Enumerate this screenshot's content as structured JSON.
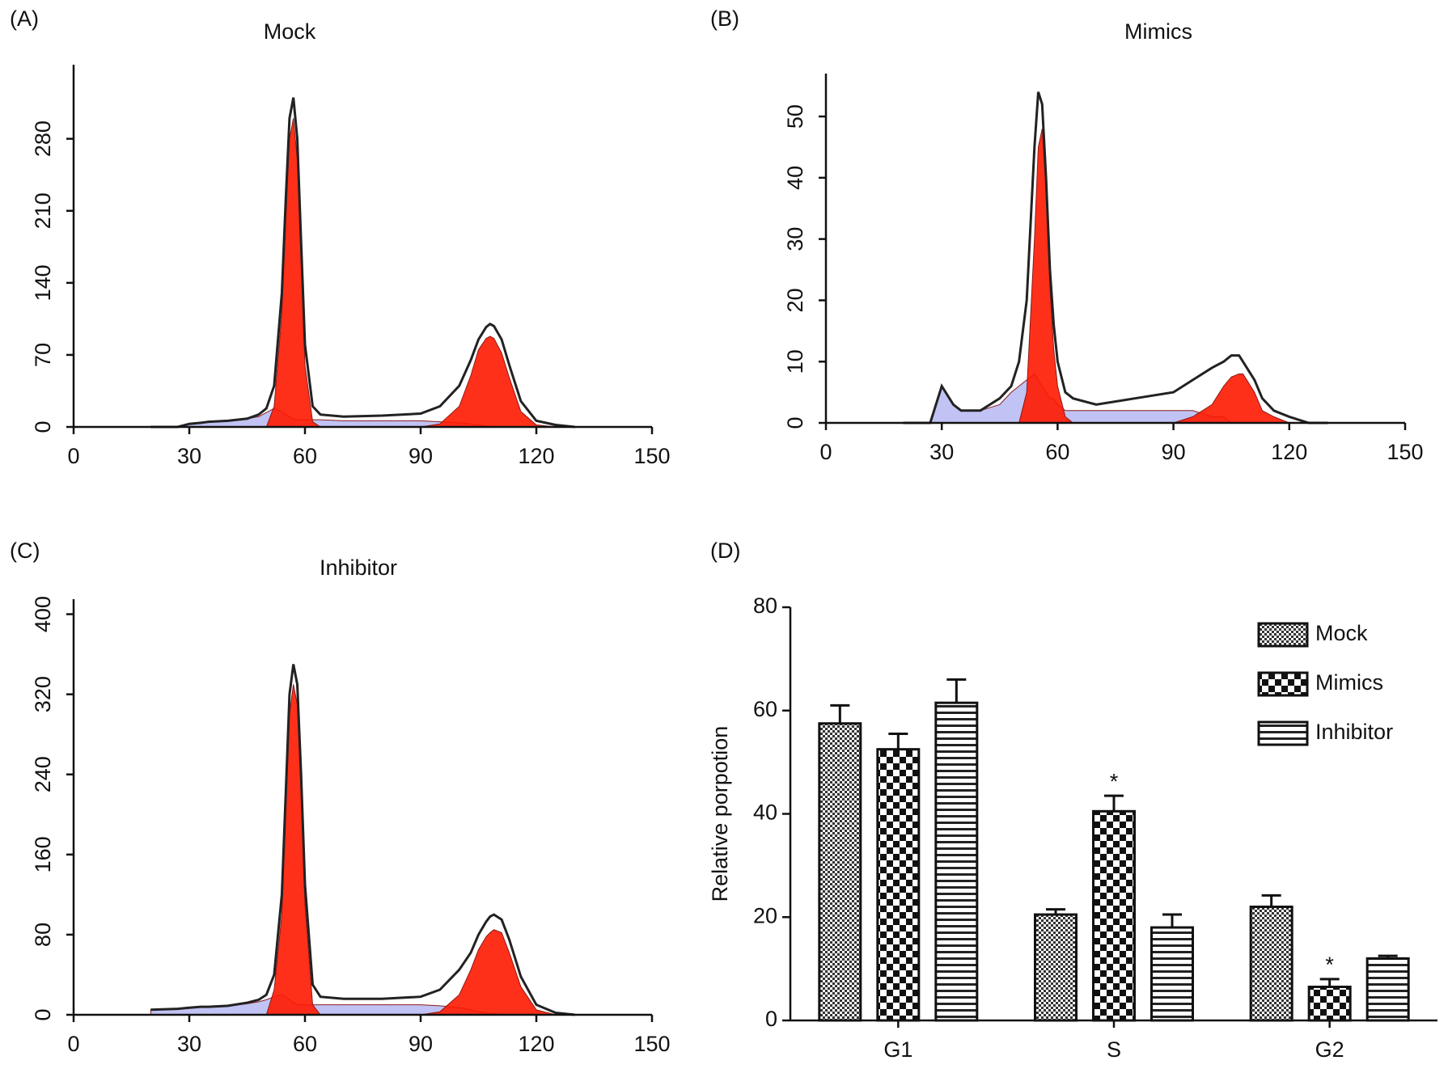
{
  "chart_data": [
    {
      "type": "area",
      "panel": "(A)",
      "title": "Mock",
      "x": [
        20,
        27,
        30,
        33,
        35,
        40,
        45,
        48,
        50,
        52,
        54,
        55,
        56,
        57,
        58,
        59,
        60,
        62,
        64,
        70,
        80,
        90,
        95,
        100,
        103,
        105,
        107,
        108,
        109,
        111,
        113,
        116,
        120,
        125,
        130
      ],
      "series": [
        {
          "color": "#b9bdf2",
          "style": "fill",
          "values": [
            0,
            0,
            3,
            4,
            5,
            6,
            8,
            10,
            14,
            18,
            15,
            12,
            10,
            8,
            7,
            7,
            7,
            7,
            7,
            6,
            6,
            6,
            5,
            4,
            3,
            2,
            1,
            0,
            0,
            0,
            0,
            0,
            0,
            0,
            0
          ]
        },
        {
          "color": "#ff1a00",
          "style": "fill",
          "values": [
            0,
            0,
            0,
            0,
            0,
            0,
            0,
            0,
            0,
            20,
            110,
            200,
            280,
            300,
            260,
            160,
            60,
            5,
            0,
            0,
            0,
            0,
            0,
            0,
            0,
            0,
            0,
            0,
            0,
            0,
            0,
            0,
            0,
            0,
            0
          ]
        },
        {
          "color": "#ff1a00",
          "style": "fill",
          "values": [
            0,
            0,
            0,
            0,
            0,
            0,
            0,
            0,
            0,
            0,
            0,
            0,
            0,
            0,
            0,
            0,
            0,
            0,
            0,
            0,
            0,
            0,
            3,
            20,
            50,
            75,
            86,
            88,
            86,
            72,
            48,
            15,
            2,
            0,
            0
          ]
        },
        {
          "color": "#222222",
          "style": "line",
          "values": [
            0,
            0,
            3,
            4,
            5,
            6,
            8,
            12,
            18,
            40,
            130,
            220,
            300,
            320,
            280,
            180,
            80,
            20,
            12,
            10,
            11,
            13,
            20,
            40,
            65,
            85,
            97,
            100,
            98,
            85,
            60,
            25,
            6,
            2,
            0
          ]
        }
      ],
      "xlim": [
        0,
        150
      ],
      "xticks": [
        0,
        30,
        60,
        90,
        120,
        150
      ],
      "ylim": [
        0,
        352
      ],
      "yticks": [
        0,
        70,
        140,
        210,
        280
      ]
    },
    {
      "type": "area",
      "panel": "(B)",
      "title": "Mimics",
      "x": [
        20,
        27,
        30,
        33,
        35,
        40,
        45,
        48,
        50,
        52,
        54,
        55,
        56,
        57,
        58,
        59,
        60,
        62,
        64,
        70,
        80,
        90,
        95,
        100,
        103,
        105,
        107,
        108,
        109,
        111,
        113,
        116,
        120,
        125,
        130
      ],
      "series": [
        {
          "color": "#b9bdf2",
          "style": "fill",
          "values": [
            0,
            0,
            6,
            3,
            2,
            2,
            3,
            5,
            6,
            7,
            8,
            7,
            6,
            5,
            4,
            4,
            3,
            2,
            2,
            2,
            2,
            2,
            2,
            1,
            1,
            0,
            0,
            0,
            0,
            0,
            0,
            0,
            0,
            0,
            0
          ]
        },
        {
          "color": "#ff1a00",
          "style": "fill",
          "values": [
            0,
            0,
            0,
            0,
            0,
            0,
            0,
            0,
            0,
            5,
            30,
            45,
            48,
            38,
            22,
            12,
            6,
            1,
            0,
            0,
            0,
            0,
            0,
            0,
            0,
            0,
            0,
            0,
            0,
            0,
            0,
            0,
            0,
            0,
            0
          ]
        },
        {
          "color": "#ff1a00",
          "style": "fill",
          "values": [
            0,
            0,
            0,
            0,
            0,
            0,
            0,
            0,
            0,
            0,
            0,
            0,
            0,
            0,
            0,
            0,
            0,
            0,
            0,
            0,
            0,
            0,
            1,
            3,
            6,
            7.5,
            8,
            8,
            7,
            5,
            2,
            1,
            0,
            0,
            0
          ]
        },
        {
          "color": "#222222",
          "style": "line",
          "values": [
            0,
            0,
            6,
            3,
            2,
            2,
            4,
            6,
            10,
            20,
            45,
            54,
            52,
            40,
            25,
            16,
            10,
            5,
            4,
            3,
            4,
            5,
            7,
            9,
            10,
            11,
            11,
            10,
            9,
            7,
            4,
            2,
            1,
            0,
            0
          ]
        }
      ],
      "xlim": [
        0,
        150
      ],
      "xticks": [
        0,
        30,
        60,
        90,
        120,
        150
      ],
      "ylim": [
        0,
        57
      ],
      "yticks": [
        0,
        10,
        20,
        30,
        40,
        50
      ]
    },
    {
      "type": "area",
      "panel": "(C)",
      "title": "Inhibitor",
      "x": [
        20,
        27,
        30,
        33,
        35,
        40,
        45,
        48,
        50,
        52,
        54,
        55,
        56,
        57,
        58,
        59,
        60,
        62,
        64,
        70,
        80,
        90,
        95,
        100,
        103,
        105,
        107,
        108,
        109,
        111,
        113,
        116,
        120,
        125,
        130
      ],
      "series": [
        {
          "color": "#b9bdf2",
          "style": "fill",
          "values": [
            5,
            6,
            7,
            8,
            8,
            9,
            11,
            13,
            15,
            18,
            20,
            18,
            15,
            12,
            10,
            10,
            10,
            10,
            10,
            10,
            10,
            10,
            9,
            7,
            5,
            3,
            2,
            1,
            1,
            0,
            0,
            0,
            0,
            0,
            0
          ]
        },
        {
          "color": "#ff1a00",
          "style": "fill",
          "values": [
            0,
            0,
            0,
            0,
            0,
            0,
            0,
            0,
            0,
            25,
            100,
            200,
            300,
            330,
            310,
            220,
            110,
            10,
            0,
            0,
            0,
            0,
            0,
            0,
            0,
            0,
            0,
            0,
            0,
            0,
            0,
            0,
            0,
            0,
            0
          ]
        },
        {
          "color": "#ff1a00",
          "style": "fill",
          "values": [
            0,
            0,
            0,
            0,
            0,
            0,
            0,
            0,
            0,
            0,
            0,
            0,
            0,
            0,
            0,
            0,
            0,
            0,
            0,
            0,
            0,
            0,
            3,
            20,
            45,
            65,
            78,
            82,
            85,
            82,
            62,
            28,
            5,
            0,
            0
          ]
        },
        {
          "color": "#222222",
          "style": "line",
          "values": [
            5,
            6,
            7,
            8,
            8,
            9,
            12,
            15,
            20,
            40,
            120,
            220,
            320,
            350,
            330,
            240,
            130,
            30,
            18,
            16,
            16,
            18,
            25,
            45,
            62,
            80,
            93,
            98,
            100,
            95,
            75,
            38,
            10,
            2,
            0
          ]
        }
      ],
      "xlim": [
        0,
        150
      ],
      "xticks": [
        0,
        30,
        60,
        90,
        120,
        150
      ],
      "ylim": [
        0,
        415
      ],
      "yticks": [
        0,
        80,
        160,
        240,
        320,
        400
      ]
    },
    {
      "type": "bar",
      "panel": "(D)",
      "y_label": "Relative porpotion",
      "categories": [
        "G1",
        "S",
        "G2"
      ],
      "series": [
        {
          "name": "Mock",
          "pattern": "fine-check",
          "values": [
            57.5,
            20.5,
            22
          ],
          "errors": [
            3.5,
            1,
            2.2
          ]
        },
        {
          "name": "Mimics",
          "pattern": "checker",
          "values": [
            52.5,
            40.5,
            6.5
          ],
          "errors": [
            3,
            3,
            1.5
          ],
          "markers": [
            null,
            "*",
            "*"
          ]
        },
        {
          "name": "Inhibitor",
          "pattern": "stripes",
          "values": [
            61.5,
            18,
            12
          ],
          "errors": [
            4.5,
            2.5,
            0.5
          ]
        }
      ],
      "ylim": [
        0,
        80
      ],
      "yticks": [
        0,
        20,
        40,
        60,
        80
      ]
    }
  ]
}
